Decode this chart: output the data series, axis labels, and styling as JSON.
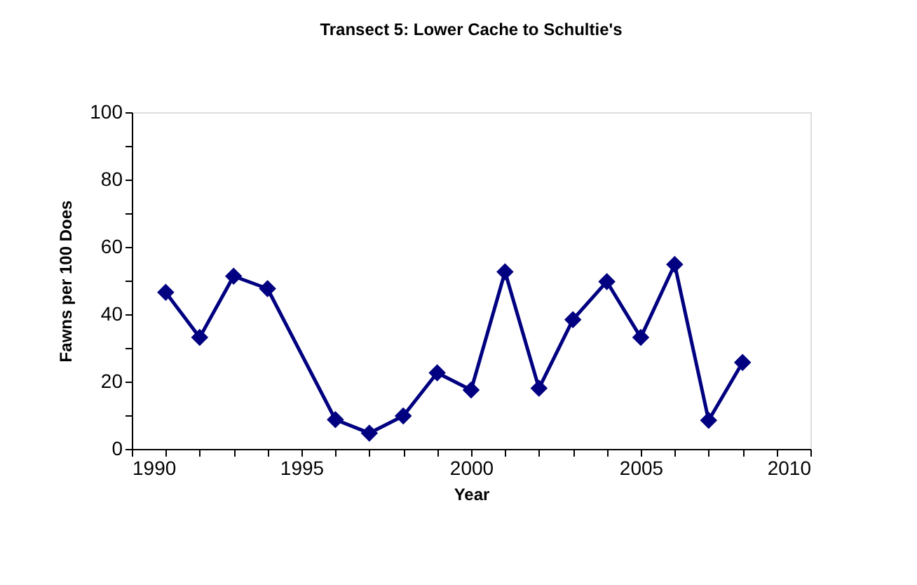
{
  "chart_data": {
    "type": "line",
    "title": "Transect 5: Lower Cache to Schultie's",
    "xlabel": "Year",
    "ylabel": "Fawns per 100 Does",
    "x": [
      1991,
      1992,
      1993,
      1994,
      1996,
      1997,
      1998,
      1999,
      2000,
      2001,
      2002,
      2003,
      2004,
      2005,
      2006,
      2007,
      2008
    ],
    "series": [
      {
        "color": "#000080",
        "values": [
          46.5,
          33.1,
          51.3,
          47.6,
          8.7,
          4.7,
          9.8,
          22.6,
          17.5,
          52.6,
          18.0,
          38.4,
          49.7,
          33.1,
          54.8,
          8.5,
          25.7
        ]
      }
    ],
    "xlim": [
      1990,
      2010
    ],
    "xticks": [
      1990,
      {
        "value": 1991,
        "label": null
      },
      {
        "value": 1992,
        "label": null
      },
      {
        "value": 1993,
        "label": null
      },
      {
        "value": 1994,
        "label": null
      },
      1995,
      {
        "value": 1996,
        "label": null
      },
      {
        "value": 1997,
        "label": null
      },
      {
        "value": 1998,
        "label": null
      },
      {
        "value": 1999,
        "label": null
      },
      2000,
      {
        "value": 2001,
        "label": null
      },
      {
        "value": 2002,
        "label": null
      },
      {
        "value": 2003,
        "label": null
      },
      {
        "value": 2004,
        "label": null
      },
      2005,
      {
        "value": 2006,
        "label": null
      },
      {
        "value": 2007,
        "label": null
      },
      {
        "value": 2008,
        "label": null
      },
      {
        "value": 2009,
        "label": null
      },
      2010
    ],
    "ylim": [
      0,
      100
    ],
    "yticks": [
      0,
      {
        "value": 10,
        "label": null
      },
      20,
      {
        "value": 30,
        "label": null
      },
      40,
      {
        "value": 50,
        "label": null
      },
      60,
      {
        "value": 70,
        "label": null
      },
      80,
      {
        "value": 90,
        "label": null
      },
      100
    ],
    "grid": false,
    "marker": "diamond",
    "line_style": "solid"
  }
}
